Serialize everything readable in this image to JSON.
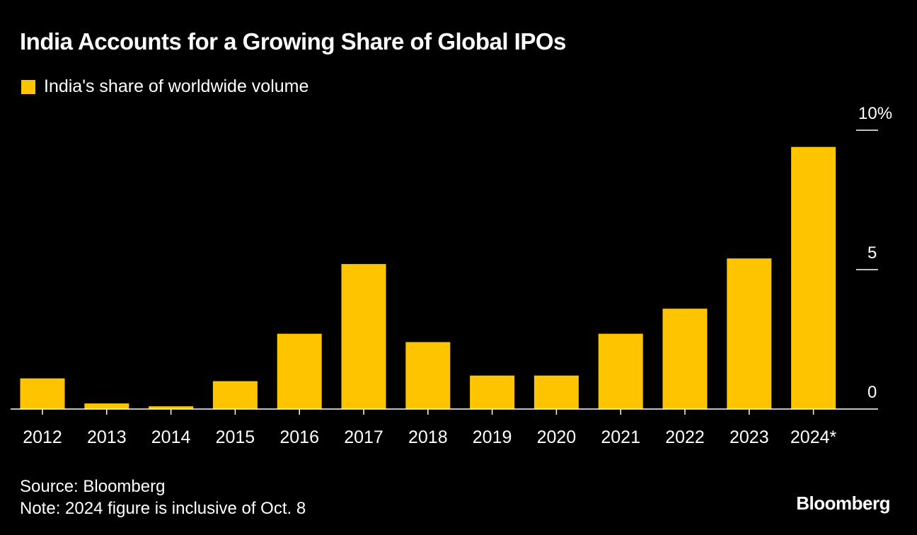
{
  "header": {
    "title": "India Accounts for a Growing Share of Global IPOs"
  },
  "colors": {
    "background": "#000000",
    "bar": "#FFC400",
    "text": "#FFFFFF",
    "axis": "#FFFFFF"
  },
  "chart_data": {
    "type": "bar",
    "categories": [
      "2012",
      "2013",
      "2014",
      "2015",
      "2016",
      "2017",
      "2018",
      "2019",
      "2020",
      "2021",
      "2022",
      "2023",
      "2024*"
    ],
    "series": [
      {
        "name": "India's share of worldwide volume",
        "values": [
          1.1,
          0.2,
          0.1,
          1.0,
          2.7,
          5.2,
          2.4,
          1.2,
          1.2,
          2.7,
          3.6,
          5.4,
          9.4
        ]
      }
    ],
    "ylim": [
      0,
      10
    ],
    "y_ticks": [
      {
        "value": 10,
        "label": "10%"
      },
      {
        "value": 5,
        "label": "5"
      },
      {
        "value": 0,
        "label": "0"
      }
    ],
    "y_axis_side": "right",
    "grid": false,
    "legend_position": "top-left"
  },
  "footer": {
    "source": "Source: Bloomberg",
    "note": "Note: 2024 figure is inclusive of Oct. 8",
    "brand": "Bloomberg"
  }
}
